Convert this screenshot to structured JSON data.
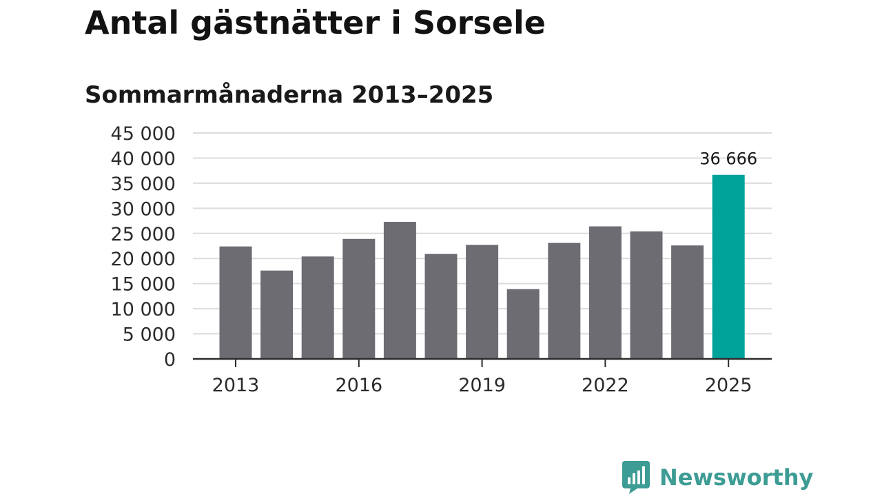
{
  "header": {
    "title": "Antal gästnätter i Sorsele",
    "subtitle": "Sommarmånaderna 2013–2025"
  },
  "brand": {
    "name": "Newsworthy",
    "icon": "newsworthy-logo-icon",
    "color": "#3d9c94"
  },
  "colors": {
    "bar": "#6d6c73",
    "highlight": "#00a39a",
    "grid": "#dcdcdc",
    "axis": "#2b2b2b"
  },
  "chart_data": {
    "type": "bar",
    "title": "Antal gästnätter i Sorsele",
    "subtitle": "Sommarmånaderna 2013–2025",
    "xlabel": "",
    "ylabel": "",
    "categories": [
      "2013",
      "2014",
      "2015",
      "2016",
      "2017",
      "2018",
      "2019",
      "2020",
      "2021",
      "2022",
      "2023",
      "2024",
      "2025"
    ],
    "values": [
      22400,
      17600,
      20400,
      23900,
      27300,
      20900,
      22700,
      13900,
      23100,
      26400,
      25400,
      22600,
      36666
    ],
    "highlight_index": 12,
    "highlight_label": "36 666",
    "ylim": [
      0,
      45000
    ],
    "yticks": [
      0,
      5000,
      10000,
      15000,
      20000,
      25000,
      30000,
      35000,
      40000,
      45000
    ],
    "ytick_labels": [
      "0",
      "5 000",
      "10 000",
      "15 000",
      "20 000",
      "25 000",
      "30 000",
      "35 000",
      "40 000",
      "45 000"
    ],
    "xtick_labels": [
      "2013",
      "2016",
      "2019",
      "2022",
      "2025"
    ],
    "grid": true,
    "legend": "none"
  }
}
